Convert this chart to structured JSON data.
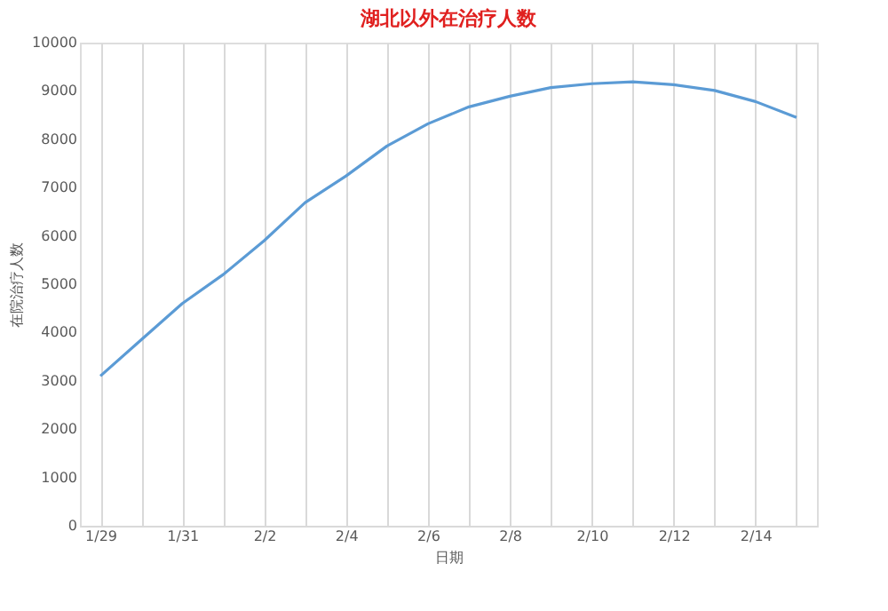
{
  "chart_data": {
    "type": "line",
    "title": "湖北以外在治疗人数",
    "xlabel": "日期",
    "ylabel": "在院治疗人数",
    "categories": [
      "1/29",
      null,
      "1/31",
      null,
      "2/2",
      null,
      "2/4",
      null,
      "2/6",
      null,
      "2/8",
      null,
      "2/10",
      null,
      "2/12",
      null,
      "2/14",
      null
    ],
    "series": [
      {
        "color": "#5b9bd5",
        "values": [
          3100,
          3850,
          4600,
          5200,
          5900,
          6690,
          7240,
          7860,
          8320,
          8670,
          8890,
          9070,
          9150,
          9190,
          9130,
          9010,
          8780,
          8450
        ]
      }
    ],
    "ylim": [
      0,
      10000
    ],
    "yticks": [
      0,
      1000,
      2000,
      3000,
      4000,
      5000,
      6000,
      7000,
      8000,
      9000,
      10000
    ],
    "grid": "x",
    "marker": "none",
    "line_style": "solid"
  }
}
